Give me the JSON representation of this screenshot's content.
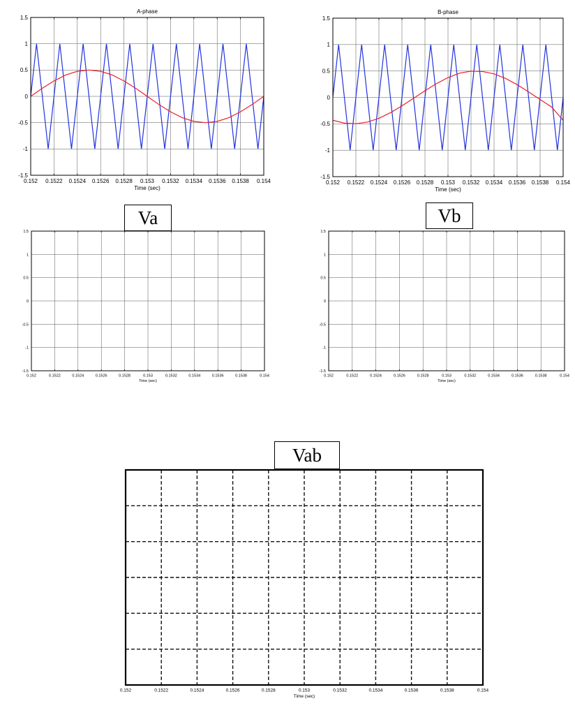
{
  "chart_data": [
    {
      "type": "line",
      "title": "A-phase",
      "xlabel": "Time (sec)",
      "ylabel": "",
      "xlim": [
        0.152,
        0.154
      ],
      "ylim": [
        -1.5,
        1.5
      ],
      "xticks": [
        "0.152",
        "0.1522",
        "0.1524",
        "0.1526",
        "0.1528",
        "0.153",
        "0.1532",
        "0.1534",
        "0.1536",
        "0.1538",
        "0.154"
      ],
      "yticks": [
        "1.5",
        "1",
        "0.5",
        "0",
        "-0.5",
        "-1",
        "-1.5"
      ],
      "grid": true,
      "series": [
        {
          "color": "#2233dd",
          "style": "solid",
          "x": [
            0.152,
            0.15205,
            0.1521,
            0.15215,
            0.1522,
            0.15225,
            0.1523,
            0.15235,
            0.1524,
            0.15245,
            0.1525,
            0.15255,
            0.1526,
            0.15265,
            0.1527,
            0.15275,
            0.1528,
            0.15285,
            0.1529,
            0.15295,
            0.153,
            0.15305,
            0.1531,
            0.15315,
            0.1532,
            0.15325,
            0.1533,
            0.15335,
            0.1534,
            0.15345,
            0.1535,
            0.15355,
            0.1536,
            0.15365,
            0.1537,
            0.15375,
            0.1538,
            0.15385,
            0.1539,
            0.15395,
            0.154
          ],
          "y": [
            0,
            1,
            0,
            -1,
            0,
            1,
            0,
            -1,
            0,
            1,
            0,
            -1,
            0,
            1,
            0,
            -1,
            0,
            1,
            0,
            -1,
            0,
            1,
            0,
            -1,
            0,
            1,
            0,
            -1,
            0,
            1,
            0,
            -1,
            0,
            1,
            0,
            -1,
            0,
            1,
            0,
            -1,
            0
          ]
        },
        {
          "color": "#e8212b",
          "style": "solid",
          "x": [
            0.152,
            0.1521,
            0.1522,
            0.1523,
            0.1524,
            0.1525,
            0.1526,
            0.1527,
            0.1528,
            0.1529,
            0.153,
            0.1531,
            0.1532,
            0.1533,
            0.1534,
            0.1535,
            0.1536,
            0.1537,
            0.1538,
            0.1539,
            0.154
          ],
          "y": [
            0,
            0.155,
            0.294,
            0.405,
            0.476,
            0.5,
            0.476,
            0.405,
            0.294,
            0.155,
            0,
            -0.155,
            -0.294,
            -0.405,
            -0.476,
            -0.5,
            -0.476,
            -0.405,
            -0.294,
            -0.155,
            0
          ]
        }
      ]
    },
    {
      "type": "line",
      "title": "B-phase",
      "xlabel": "Time (sec)",
      "ylabel": "",
      "xlim": [
        0.152,
        0.154
      ],
      "ylim": [
        -1.5,
        1.5
      ],
      "xticks": [
        "0.152",
        "0.1522",
        "0.1524",
        "0.1526",
        "0.1528",
        "0.153",
        "0.1532",
        "0.1534",
        "0.1536",
        "0.1538",
        "0.154"
      ],
      "yticks": [
        "1.5",
        "1",
        "0.5",
        "0",
        "-0.5",
        "-1",
        "-1.5"
      ],
      "grid": true,
      "series": [
        {
          "color": "#2233dd",
          "style": "solid",
          "x": [
            0.152,
            0.15205,
            0.1521,
            0.15215,
            0.1522,
            0.15225,
            0.1523,
            0.15235,
            0.1524,
            0.15245,
            0.1525,
            0.15255,
            0.1526,
            0.15265,
            0.1527,
            0.15275,
            0.1528,
            0.15285,
            0.1529,
            0.15295,
            0.153,
            0.15305,
            0.1531,
            0.15315,
            0.1532,
            0.15325,
            0.1533,
            0.15335,
            0.1534,
            0.15345,
            0.1535,
            0.15355,
            0.1536,
            0.15365,
            0.1537,
            0.15375,
            0.1538,
            0.15385,
            0.1539,
            0.15395,
            0.154
          ],
          "y": [
            0,
            1,
            0,
            -1,
            0,
            1,
            0,
            -1,
            0,
            1,
            0,
            -1,
            0,
            1,
            0,
            -1,
            0,
            1,
            0,
            -1,
            0,
            1,
            0,
            -1,
            0,
            1,
            0,
            -1,
            0,
            1,
            0,
            -1,
            0,
            1,
            0,
            -1,
            0,
            1,
            0,
            -1,
            0
          ]
        },
        {
          "color": "#e8212b",
          "style": "solid",
          "x": [
            0.152,
            0.1521,
            0.1522,
            0.1523,
            0.1524,
            0.1525,
            0.1526,
            0.1527,
            0.1528,
            0.1529,
            0.153,
            0.1531,
            0.1532,
            0.1533,
            0.1534,
            0.1535,
            0.1536,
            0.1537,
            0.1538,
            0.1539,
            0.154
          ],
          "y": [
            -0.433,
            -0.487,
            -0.498,
            -0.467,
            -0.395,
            -0.29,
            -0.16,
            -0.018,
            0.126,
            0.261,
            0.375,
            0.459,
            0.497,
            0.49,
            0.445,
            0.359,
            0.242,
            0.104,
            -0.04,
            -0.181,
            -0.433
          ]
        }
      ]
    },
    {
      "type": "line",
      "title": "",
      "xlabel": "Time (sec)",
      "ylabel": "",
      "xlim": [
        0.152,
        0.154
      ],
      "ylim": [
        -1.5,
        1.5
      ],
      "xticks": [
        "0.152",
        "0.1522",
        "0.1524",
        "0.1526",
        "0.1528",
        "0.153",
        "0.1532",
        "0.1534",
        "0.1536",
        "0.1538",
        "0.154"
      ],
      "yticks": [
        "1.5",
        "1",
        "0.5",
        "0",
        "-0.5",
        "-1",
        "-1.5"
      ],
      "grid": true,
      "series": []
    },
    {
      "type": "line",
      "title": "",
      "xlabel": "Time (sec)",
      "ylabel": "",
      "xlim": [
        0.152,
        0.154
      ],
      "ylim": [
        -1.5,
        1.5
      ],
      "xticks": [
        "0.152",
        "0.1522",
        "0.1524",
        "0.1526",
        "0.1528",
        "0.153",
        "0.1532",
        "0.1534",
        "0.1536",
        "0.1538",
        "0.154"
      ],
      "yticks": [
        "1.5",
        "1",
        "0.5",
        "0",
        "-0.5",
        "-1",
        "-1.5"
      ],
      "grid": true,
      "series": []
    },
    {
      "type": "line",
      "title": "",
      "xlabel": "Time (sec)",
      "ylabel": "",
      "xlim": [
        0.152,
        0.154
      ],
      "ylim": [
        -1.5,
        1.5
      ],
      "xticks": [
        "0.152",
        "0.1522",
        "0.1524",
        "0.1526",
        "0.1528",
        "0.153",
        "0.1532",
        "0.1534",
        "0.1536",
        "0.1538",
        "0.154"
      ],
      "yticks": [],
      "grid": true,
      "grid_style": "dashed",
      "series": []
    }
  ],
  "labels": {
    "va": "Va",
    "vb": "Vb",
    "vab": "Vab"
  }
}
